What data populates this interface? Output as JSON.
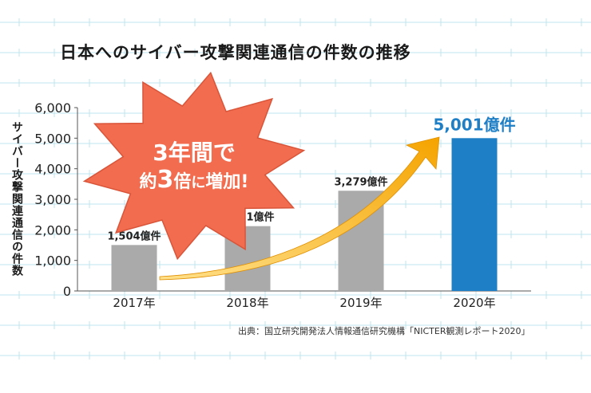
{
  "chart_data": {
    "type": "bar",
    "title": "日本へのサイバー攻撃関連通信の件数の推移",
    "ylabel": "サイバー攻撃関連通信の件数",
    "xlabel": "",
    "categories": [
      "2017年",
      "2018年",
      "2019年",
      "2020年"
    ],
    "values": [
      1504,
      2121,
      3279,
      5001
    ],
    "data_labels": [
      "1,504億件",
      "2,121億件",
      "3,279億件",
      "5,001億件"
    ],
    "ylim": [
      0,
      6000
    ],
    "yticks": [
      0,
      1000,
      2000,
      3000,
      4000,
      5000,
      6000
    ],
    "ytick_labels": [
      "0",
      "1,000",
      "2,000",
      "3,000",
      "4,000",
      "5,000",
      "6,000"
    ],
    "grid": false,
    "bar_colors": [
      "#aaaaaa",
      "#aaaaaa",
      "#aaaaaa",
      "#1e7fc6"
    ],
    "highlight_label_color": "#1e7fc6"
  },
  "callout": {
    "line1": "3年間で",
    "line2_prefix": "約",
    "line2_number": "3",
    "line2_middle": "倍",
    "line2_small": "に",
    "line2_suffix": "増加!",
    "fill_color": "#f26c4f",
    "arrow_color": "#f5a400"
  },
  "source_note": "出典：国立研究開発法人情報通信研究機構「NICTER観測レポート2020」",
  "colors": {
    "background_rule_lines": "#bfe6f0",
    "axis": "#555555"
  }
}
